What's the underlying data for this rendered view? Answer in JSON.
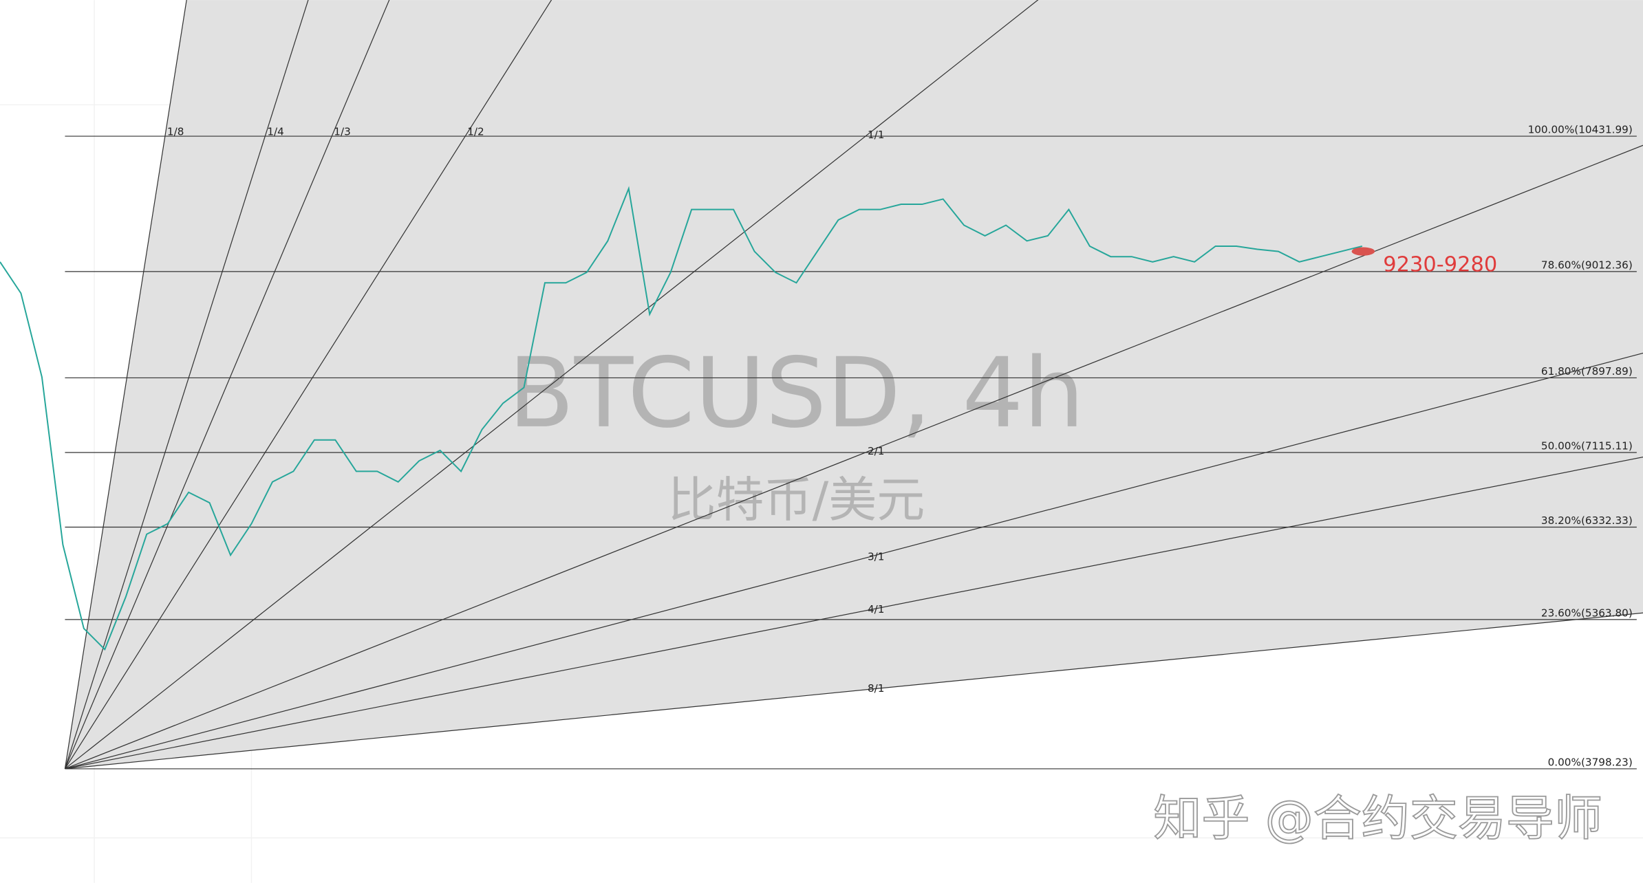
{
  "chart_data": {
    "type": "line",
    "title": "BTCUSD, 4h",
    "subtitle": "比特币/美元",
    "color": "#26a69a",
    "values": [
      9114,
      8784,
      7906,
      6149,
      5270,
      5050,
      5599,
      6258,
      6368,
      6698,
      6588,
      6039,
      6368,
      6807,
      6917,
      7247,
      7247,
      6917,
      6917,
      6807,
      7027,
      7137,
      6917,
      7357,
      7631,
      7796,
      8894,
      8894,
      9004,
      9334,
      9883,
      8565,
      9004,
      9663,
      9663,
      9663,
      9224,
      9004,
      8894,
      9224,
      9553,
      9663,
      9663,
      9718,
      9718,
      9773,
      9498,
      9388,
      9498,
      9334,
      9388,
      9663,
      9279,
      9169,
      9169,
      9114,
      9169,
      9114,
      9279,
      9279,
      9246,
      9224,
      9114,
      9169,
      9224,
      9279
    ],
    "fib_levels": [
      {
        "value": 10431.99,
        "label": "100.00%(10431.99)"
      },
      {
        "value": 9012.36,
        "label": "78.60%(9012.36)"
      },
      {
        "value": 7897.89,
        "label": "61.80%(7897.89)"
      },
      {
        "value": 7115.11,
        "label": "50.00%(7115.11)"
      },
      {
        "value": 6332.33,
        "label": "38.20%(6332.33)"
      },
      {
        "value": 5363.8,
        "label": "23.60%(5363.80)"
      },
      {
        "value": 3798.23,
        "label": "0.00%(3798.23)"
      }
    ],
    "fan_lines": [
      {
        "value": 0.125,
        "label": "1/8"
      },
      {
        "value": 0.25,
        "label": "1/4"
      },
      {
        "value": 0.3333,
        "label": "1/3"
      },
      {
        "value": 0.5,
        "label": "1/2"
      },
      {
        "value": 1,
        "label": "1/1"
      },
      {
        "value": 2,
        "label": "2/1"
      },
      {
        "value": 3,
        "label": "3/1"
      },
      {
        "value": 4,
        "label": "4/1"
      },
      {
        "value": 8,
        "label": "8/1"
      }
    ],
    "annotation": "9230-9280",
    "annotation_color": "#e03c3c"
  },
  "watermark": "知乎 @合约交易导师"
}
